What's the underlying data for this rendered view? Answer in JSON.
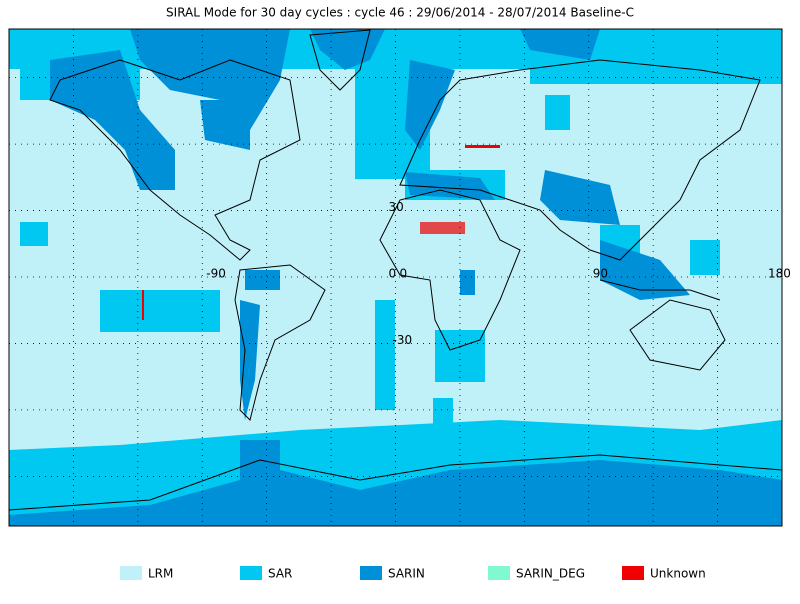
{
  "title": "SIRAL Mode for 30 day cycles : cycle 46 : 29/06/2014 - 28/07/2014 Baseline-C",
  "map": {
    "lon_labels": [
      -90,
      0,
      90,
      180
    ],
    "lat_labels": [
      30,
      0,
      -30
    ]
  },
  "legend": [
    {
      "name": "LRM",
      "color": "#c0f0f8"
    },
    {
      "name": "SAR",
      "color": "#00c8f0"
    },
    {
      "name": "SARIN",
      "color": "#0090d8"
    },
    {
      "name": "SARIN_DEG",
      "color": "#80f8d0"
    },
    {
      "name": "Unknown",
      "color": "#f00000"
    }
  ]
}
